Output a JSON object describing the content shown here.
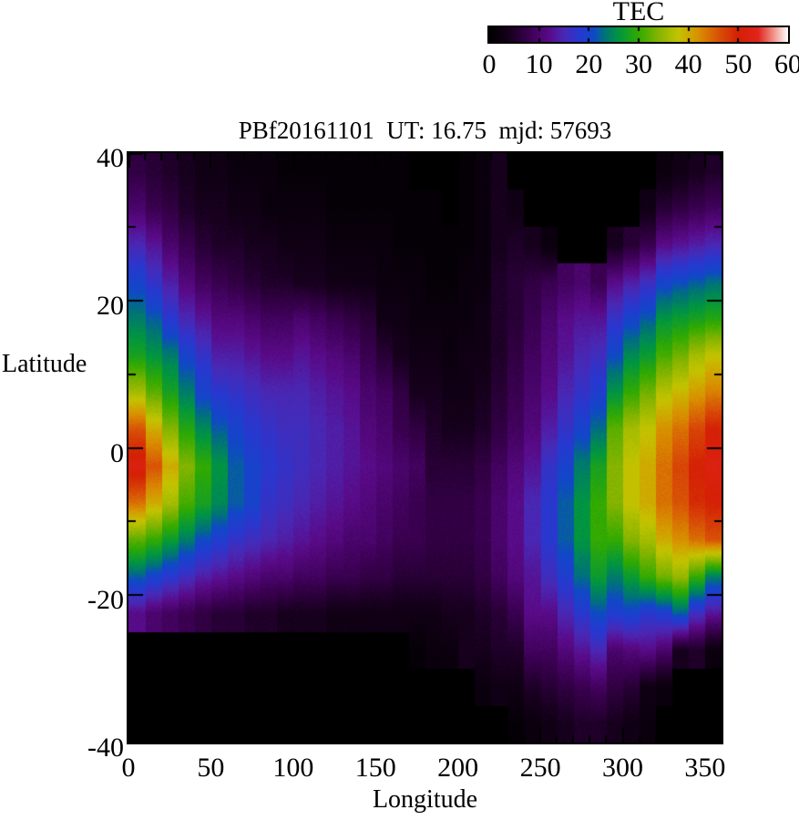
{
  "figure": {
    "title": "PBf20161101  UT: 16.75  mjd: 57693"
  },
  "colorbar": {
    "title": "TEC",
    "min": 0,
    "max": 60,
    "tick_labels": [
      "0",
      "10",
      "20",
      "30",
      "40",
      "50",
      "60"
    ]
  },
  "axes": {
    "x": {
      "label": "Longitude",
      "min": 0,
      "max": 360,
      "major_ticks": [
        0,
        50,
        100,
        150,
        200,
        250,
        300,
        350
      ],
      "minor_tick_step": 10
    },
    "y": {
      "label": "Latitude",
      "min": -40,
      "max": 40,
      "major_ticks": [
        40,
        20,
        0,
        -20,
        -40
      ],
      "major_tick_labels": [
        "40",
        "20",
        "0",
        "-20",
        "-40"
      ],
      "minor_tick_step": 10
    }
  },
  "chart_data": {
    "type": "heatmap",
    "title": "PBf20161101  UT: 16.75  mjd: 57693",
    "xlabel": "Longitude",
    "ylabel": "Latitude",
    "value_label": "TEC",
    "xlim": [
      0,
      360
    ],
    "ylim": [
      -40,
      40
    ],
    "value_range": [
      0,
      60
    ],
    "no_data_value": 0,
    "lon_col_center_start": 5,
    "lon_col_step": 10,
    "lat_row_center_start": 37.5,
    "lat_row_step": -5,
    "grid_rows_top_to_bottom": [
      [
        7,
        6,
        5,
        4,
        3,
        3,
        2,
        2,
        2,
        1,
        1,
        1,
        1,
        1,
        1,
        1,
        1,
        0,
        0,
        0,
        1,
        2,
        4,
        0,
        0,
        0,
        0,
        0,
        0,
        0,
        0,
        0,
        2,
        3,
        4,
        5
      ],
      [
        10,
        8,
        7,
        5,
        4,
        4,
        3,
        3,
        2,
        2,
        2,
        2,
        1,
        1,
        1,
        1,
        1,
        1,
        1,
        0,
        1,
        2,
        4,
        3,
        0,
        0,
        0,
        0,
        0,
        0,
        0,
        3,
        6,
        7,
        8,
        9
      ],
      [
        15,
        13,
        10,
        8,
        6,
        5,
        5,
        4,
        4,
        3,
        3,
        3,
        2,
        2,
        2,
        2,
        1,
        1,
        1,
        1,
        1,
        2,
        4,
        5,
        4,
        2,
        0,
        0,
        0,
        4,
        6,
        8,
        12,
        13,
        14,
        15
      ],
      [
        20,
        17,
        14,
        11,
        9,
        8,
        7,
        6,
        5,
        5,
        4,
        4,
        3,
        3,
        3,
        2,
        2,
        2,
        1,
        1,
        2,
        2,
        5,
        6,
        7,
        8,
        9,
        10,
        8,
        12,
        14,
        16,
        20,
        21,
        22,
        23
      ],
      [
        24,
        22,
        18,
        15,
        13,
        11,
        11,
        10,
        9,
        9,
        10,
        9,
        8,
        7,
        6,
        3,
        3,
        2,
        2,
        2,
        2,
        3,
        5,
        6,
        8,
        10,
        12,
        13,
        13,
        17,
        20,
        22,
        26,
        27,
        28,
        29
      ],
      [
        28,
        26,
        24,
        20,
        17,
        14,
        14,
        13,
        12,
        12,
        13,
        12,
        11,
        10,
        8,
        6,
        4,
        3,
        3,
        2,
        3,
        3,
        5,
        7,
        9,
        11,
        13,
        15,
        16,
        21,
        25,
        27,
        31,
        33,
        36,
        38
      ],
      [
        36,
        32,
        28,
        24,
        20,
        18,
        17,
        16,
        15,
        15,
        15,
        14,
        13,
        12,
        10,
        9,
        7,
        4,
        4,
        3,
        3,
        4,
        6,
        8,
        10,
        12,
        15,
        17,
        19,
        26,
        30,
        33,
        37,
        39,
        41,
        43
      ],
      [
        46,
        40,
        34,
        29,
        25,
        22,
        20,
        18,
        17,
        16,
        16,
        15,
        14,
        13,
        11,
        10,
        8,
        7,
        5,
        4,
        4,
        5,
        7,
        9,
        11,
        14,
        17,
        20,
        23,
        32,
        36,
        38,
        42,
        44,
        47,
        50
      ],
      [
        52,
        46,
        40,
        34,
        30,
        26,
        22,
        20,
        18,
        17,
        16,
        15,
        14,
        13,
        12,
        11,
        10,
        9,
        6,
        6,
        6,
        7,
        9,
        11,
        13,
        17,
        20,
        24,
        28,
        34,
        38,
        40,
        44,
        47,
        50,
        52
      ],
      [
        44,
        40,
        36,
        31,
        28,
        25,
        22,
        20,
        17,
        16,
        15,
        14,
        13,
        12,
        11,
        10,
        9,
        8,
        7,
        7,
        7,
        8,
        10,
        12,
        15,
        18,
        22,
        26,
        30,
        34,
        38,
        40,
        44,
        46,
        49,
        50
      ],
      [
        32,
        30,
        27,
        24,
        21,
        19,
        17,
        16,
        15,
        14,
        13,
        12,
        11,
        10,
        10,
        9,
        8,
        8,
        7,
        7,
        7,
        8,
        10,
        12,
        15,
        18,
        22,
        26,
        30,
        30,
        34,
        36,
        40,
        42,
        44,
        46
      ],
      [
        22,
        20,
        18,
        16,
        14,
        13,
        12,
        11,
        10,
        10,
        9,
        9,
        8,
        8,
        7,
        7,
        6,
        6,
        6,
        6,
        6,
        7,
        9,
        11,
        13,
        16,
        19,
        23,
        27,
        24,
        27,
        30,
        33,
        35,
        30,
        24
      ],
      [
        12,
        10,
        9,
        8,
        7,
        6,
        6,
        5,
        5,
        4,
        4,
        4,
        3,
        3,
        3,
        3,
        3,
        3,
        3,
        4,
        4,
        5,
        6,
        8,
        12,
        12,
        15,
        18,
        21,
        19,
        20,
        18,
        19,
        22,
        16,
        13
      ],
      [
        0,
        0,
        0,
        0,
        0,
        0,
        0,
        0,
        0,
        0,
        0,
        0,
        0,
        0,
        0,
        0,
        0,
        1,
        2,
        2,
        4,
        4,
        5,
        5,
        9,
        9,
        11,
        13,
        15,
        10,
        11,
        12,
        10,
        4,
        5,
        2
      ],
      [
        0,
        0,
        0,
        0,
        0,
        0,
        0,
        0,
        0,
        0,
        0,
        0,
        0,
        0,
        0,
        0,
        0,
        0,
        0,
        0,
        0,
        2,
        3,
        3,
        5,
        6,
        7,
        8,
        9,
        7,
        6,
        3,
        2,
        0,
        0,
        0
      ],
      [
        0,
        0,
        0,
        0,
        0,
        0,
        0,
        0,
        0,
        0,
        0,
        0,
        0,
        0,
        0,
        0,
        0,
        0,
        0,
        0,
        0,
        0,
        0,
        1,
        2,
        3,
        4,
        5,
        5,
        4,
        3,
        2,
        0,
        0,
        0,
        0
      ]
    ],
    "colormap_stops": [
      [
        0,
        "#000000"
      ],
      [
        4,
        "#16001c"
      ],
      [
        8,
        "#3a0050"
      ],
      [
        12,
        "#5a0a88"
      ],
      [
        15,
        "#4a28b4"
      ],
      [
        18,
        "#2838d0"
      ],
      [
        21,
        "#1048c8"
      ],
      [
        23,
        "#00707e"
      ],
      [
        26,
        "#009640"
      ],
      [
        30,
        "#32aa00"
      ],
      [
        34,
        "#86b400"
      ],
      [
        38,
        "#c4c400"
      ],
      [
        42,
        "#d89000"
      ],
      [
        46,
        "#d85207"
      ],
      [
        50,
        "#d42005"
      ],
      [
        54,
        "#e2241c"
      ],
      [
        57,
        "#f09086"
      ],
      [
        60,
        "#ffffff"
      ]
    ]
  }
}
